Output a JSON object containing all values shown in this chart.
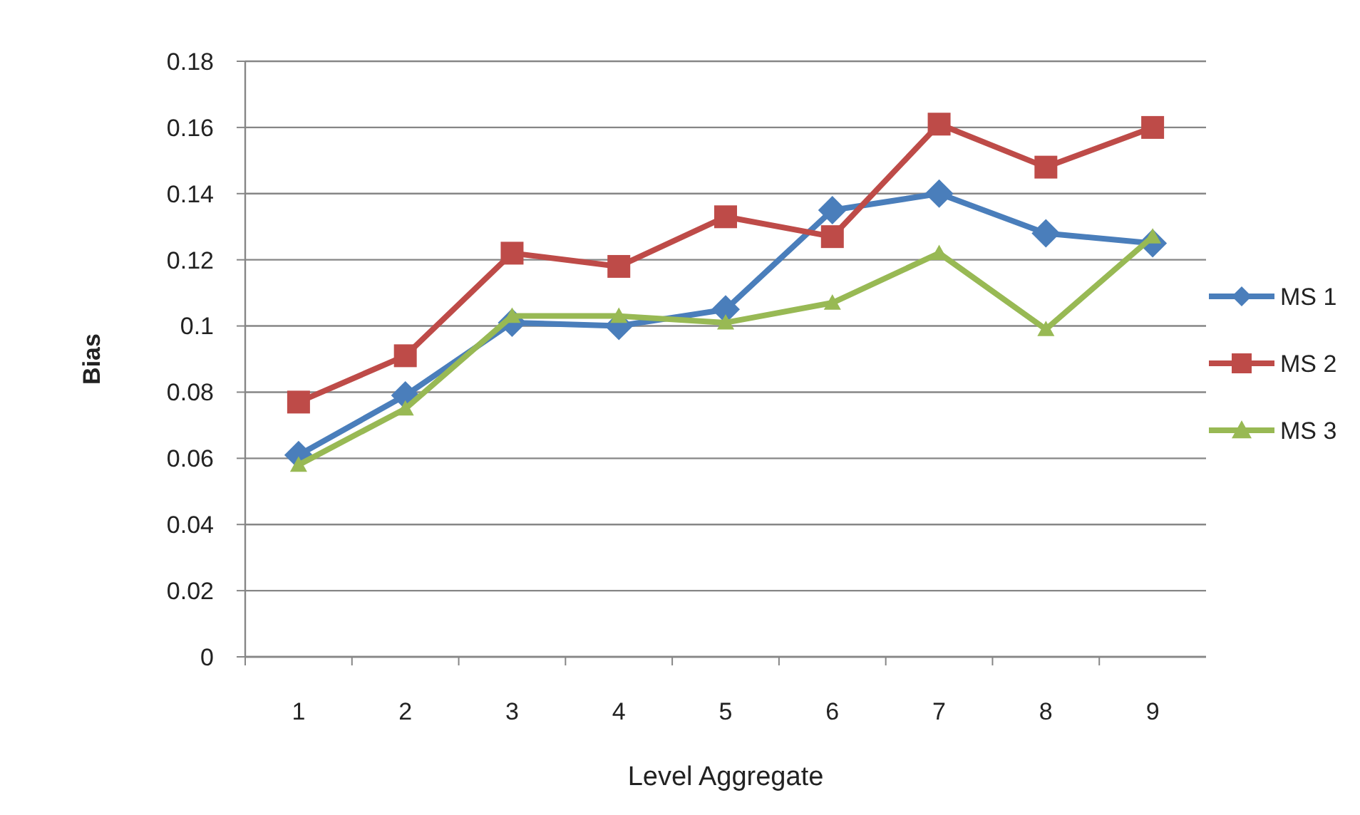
{
  "chart_data": {
    "type": "line",
    "xlabel": "Level Aggregate",
    "ylabel": "Bias",
    "categories": [
      "1",
      "2",
      "3",
      "4",
      "5",
      "6",
      "7",
      "8",
      "9"
    ],
    "series": [
      {
        "name": "MS 1",
        "color": "#4a7ebb",
        "marker": "diamond",
        "values": [
          0.061,
          0.079,
          0.101,
          0.1,
          0.105,
          0.135,
          0.14,
          0.128,
          0.125
        ]
      },
      {
        "name": "MS 2",
        "color": "#be4b48",
        "marker": "square",
        "values": [
          0.077,
          0.091,
          0.122,
          0.118,
          0.133,
          0.127,
          0.161,
          0.148,
          0.16
        ]
      },
      {
        "name": "MS 3",
        "color": "#98b954",
        "marker": "triangle",
        "values": [
          0.058,
          0.075,
          0.103,
          0.103,
          0.101,
          0.107,
          0.122,
          0.099,
          0.127
        ]
      }
    ],
    "ylim": [
      0,
      0.18
    ],
    "yticks": [
      0,
      0.02,
      0.04,
      0.06,
      0.08,
      {
        "value": 0.1,
        "label": "0.1"
      },
      0.12,
      0.14,
      0.16,
      0.18
    ],
    "grid": "y",
    "legend": "right",
    "line_style": "solid"
  }
}
